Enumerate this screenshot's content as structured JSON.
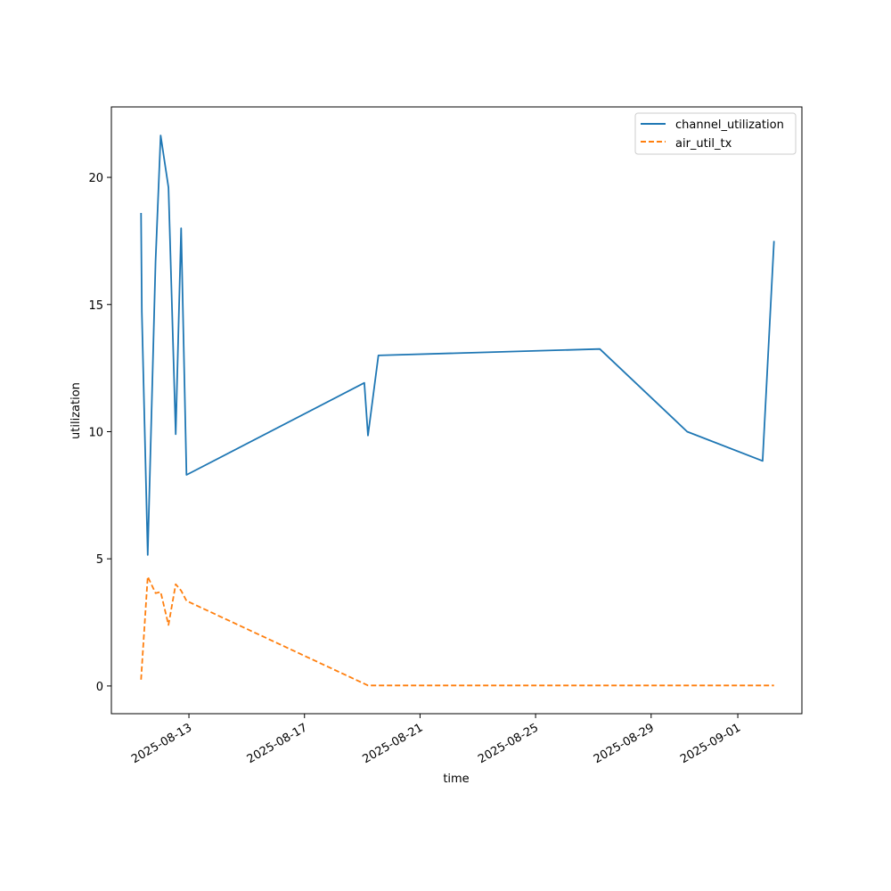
{
  "chart_data": {
    "type": "line",
    "title": "",
    "xlabel": "time",
    "ylabel": "utilization",
    "xlim": [
      "2025-08-10T07:34",
      "2025-09-03T05:15"
    ],
    "ylim": [
      -1.09,
      22.77
    ],
    "grid": false,
    "legend_position": "top-right",
    "x_ticks": [
      "2025-08-13",
      "2025-08-17",
      "2025-08-21",
      "2025-08-25",
      "2025-08-29",
      "2025-09-01"
    ],
    "y_ticks": [
      "0",
      "5",
      "10",
      "15",
      "20"
    ],
    "series": [
      {
        "name": "channel_utilization",
        "color": "#1f77b4",
        "dash": "solid",
        "points": [
          {
            "x": "2025-08-11T08:15",
            "y": 18.6
          },
          {
            "x": "2025-08-11T08:55",
            "y": 14.7
          },
          {
            "x": "2025-08-11T13:45",
            "y": 5.15
          },
          {
            "x": "2025-08-11T20:15",
            "y": 16.7
          },
          {
            "x": "2025-08-12T00:30",
            "y": 21.65
          },
          {
            "x": "2025-08-12T07:00",
            "y": 19.6
          },
          {
            "x": "2025-08-12T13:00",
            "y": 9.9
          },
          {
            "x": "2025-08-12T17:30",
            "y": 18.0
          },
          {
            "x": "2025-08-12T22:00",
            "y": 8.3
          },
          {
            "x": "2025-08-19T01:45",
            "y": 11.92
          },
          {
            "x": "2025-08-19T04:45",
            "y": 9.85
          },
          {
            "x": "2025-08-19T13:25",
            "y": 13.0
          },
          {
            "x": "2025-08-27T05:20",
            "y": 13.25
          },
          {
            "x": "2025-08-30T06:00",
            "y": 10.0
          },
          {
            "x": "2025-09-01T20:35",
            "y": 8.85
          },
          {
            "x": "2025-09-02T06:05",
            "y": 17.5
          }
        ]
      },
      {
        "name": "air_util_tx",
        "color": "#ff7f0e",
        "dash": "dashed",
        "points": [
          {
            "x": "2025-08-11T08:15",
            "y": 0.25
          },
          {
            "x": "2025-08-11T13:45",
            "y": 4.3
          },
          {
            "x": "2025-08-11T20:15",
            "y": 3.65
          },
          {
            "x": "2025-08-12T00:30",
            "y": 3.7
          },
          {
            "x": "2025-08-12T07:00",
            "y": 2.4
          },
          {
            "x": "2025-08-12T13:00",
            "y": 4.0
          },
          {
            "x": "2025-08-12T17:30",
            "y": 3.75
          },
          {
            "x": "2025-08-12T22:00",
            "y": 3.35
          },
          {
            "x": "2025-08-19T04:45",
            "y": 0.02
          },
          {
            "x": "2025-08-27T05:20",
            "y": 0.02
          },
          {
            "x": "2025-09-01T20:35",
            "y": 0.02
          },
          {
            "x": "2025-09-02T06:05",
            "y": 0.02
          }
        ]
      }
    ]
  }
}
